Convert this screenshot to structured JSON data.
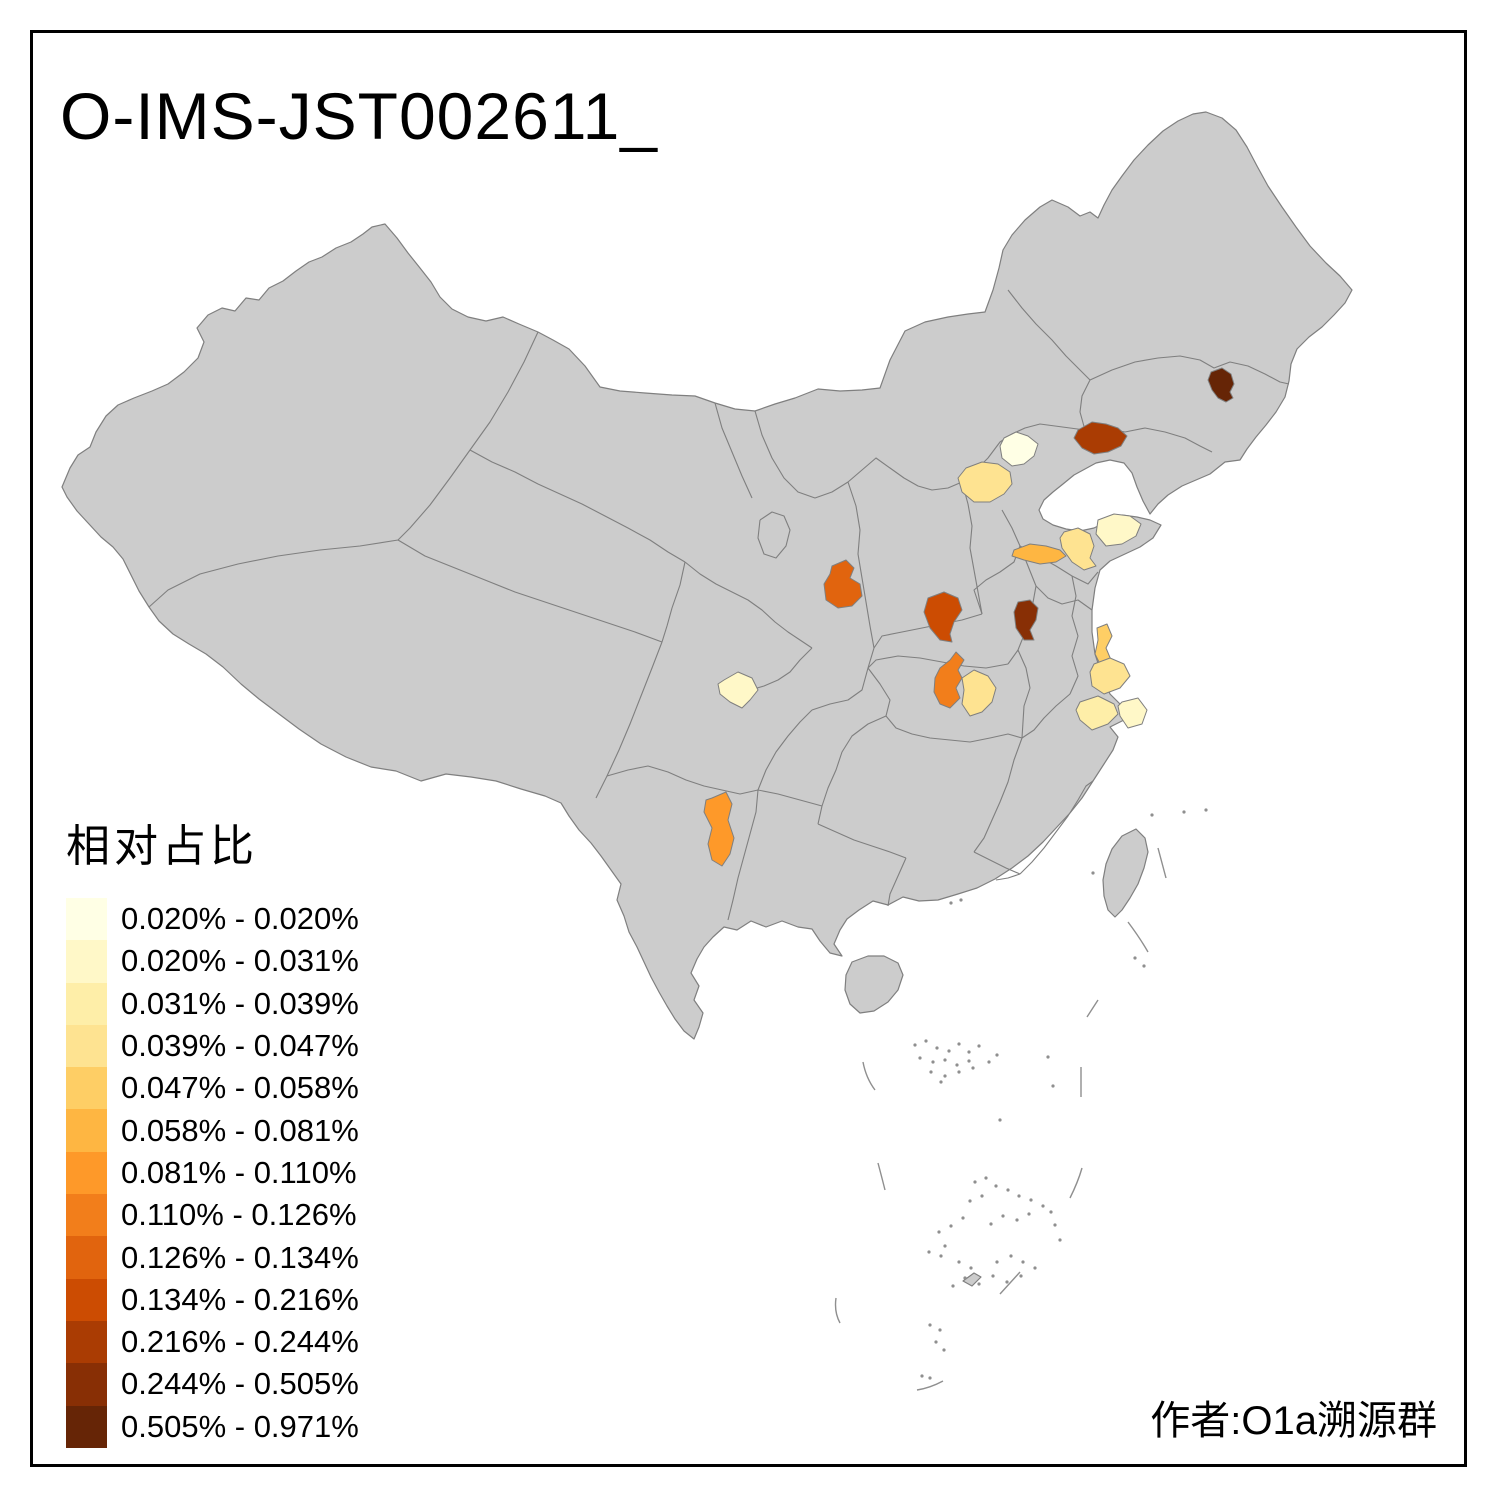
{
  "title": "O-IMS-JST002611_",
  "credit": "作者:O1a溯源群",
  "legend": {
    "title": "相对占比",
    "bins": [
      {
        "label": "0.020% - 0.020%",
        "color": "#FFFFE5"
      },
      {
        "label": "0.020% - 0.031%",
        "color": "#FFF8C8"
      },
      {
        "label": "0.031% - 0.039%",
        "color": "#FEEEA8"
      },
      {
        "label": "0.039% - 0.047%",
        "color": "#FEE391"
      },
      {
        "label": "0.047% - 0.058%",
        "color": "#FECE65"
      },
      {
        "label": "0.058% - 0.081%",
        "color": "#FEB642"
      },
      {
        "label": "0.081% - 0.110%",
        "color": "#FE9929"
      },
      {
        "label": "0.110% - 0.126%",
        "color": "#F27E1B"
      },
      {
        "label": "0.126% - 0.134%",
        "color": "#E1640E"
      },
      {
        "label": "0.134% - 0.216%",
        "color": "#CC4C02"
      },
      {
        "label": "0.216% - 0.244%",
        "color": "#AA3C03"
      },
      {
        "label": "0.244% - 0.505%",
        "color": "#882F05"
      },
      {
        "label": "0.505% - 0.971%",
        "color": "#662506"
      }
    ]
  },
  "map": {
    "land_fill": "#CCCCCC",
    "border_stroke": "#7F7F7F",
    "background": "#FFFFFF",
    "frame_color": "#000000",
    "regions": [
      {
        "id": "region-northeast-dark",
        "bin": 13
      },
      {
        "id": "region-liaoning-west",
        "bin": 11
      },
      {
        "id": "region-beijing-area",
        "bin": 1
      },
      {
        "id": "region-hebei-central",
        "bin": 4
      },
      {
        "id": "region-shandong-west",
        "bin": 6
      },
      {
        "id": "region-shandong-mid",
        "bin": 4
      },
      {
        "id": "region-shandong-east",
        "bin": 2
      },
      {
        "id": "region-shaanxi-central",
        "bin": 9
      },
      {
        "id": "region-henan-west",
        "bin": 10
      },
      {
        "id": "region-henan-east",
        "bin": 12
      },
      {
        "id": "region-hubei-northwest",
        "bin": 8
      },
      {
        "id": "region-hubei-north",
        "bin": 4
      },
      {
        "id": "region-jiangsu-mid",
        "bin": 5
      },
      {
        "id": "region-jiangsu-south",
        "bin": 4
      },
      {
        "id": "region-zhejiang-north",
        "bin": 3
      },
      {
        "id": "region-zhejiang-east",
        "bin": 2
      },
      {
        "id": "region-sichuan-chengdu",
        "bin": 2
      },
      {
        "id": "region-yunnan-central",
        "bin": 7
      }
    ]
  },
  "chart_data": {
    "type": "heatmap",
    "subtype": "choropleth-map-of-china",
    "title": "O-IMS-JST002611_",
    "legend_title": "相对占比",
    "classes": [
      "0.020% - 0.020%",
      "0.020% - 0.031%",
      "0.031% - 0.039%",
      "0.039% - 0.047%",
      "0.047% - 0.058%",
      "0.058% - 0.081%",
      "0.081% - 0.110%",
      "0.110% - 0.126%",
      "0.126% - 0.134%",
      "0.134% - 0.216%",
      "0.216% - 0.244%",
      "0.244% - 0.505%",
      "0.505% - 0.971%"
    ],
    "palette": [
      "#FFFFE5",
      "#FFF8C8",
      "#FEEEA8",
      "#FEE391",
      "#FECE65",
      "#FEB642",
      "#FE9929",
      "#F27E1B",
      "#E1640E",
      "#CC4C02",
      "#AA3C03",
      "#882F05",
      "#662506"
    ],
    "highlighted_region_count": 18,
    "legend_position": "bottom-left",
    "annotation": "作者:O1a溯源群"
  }
}
